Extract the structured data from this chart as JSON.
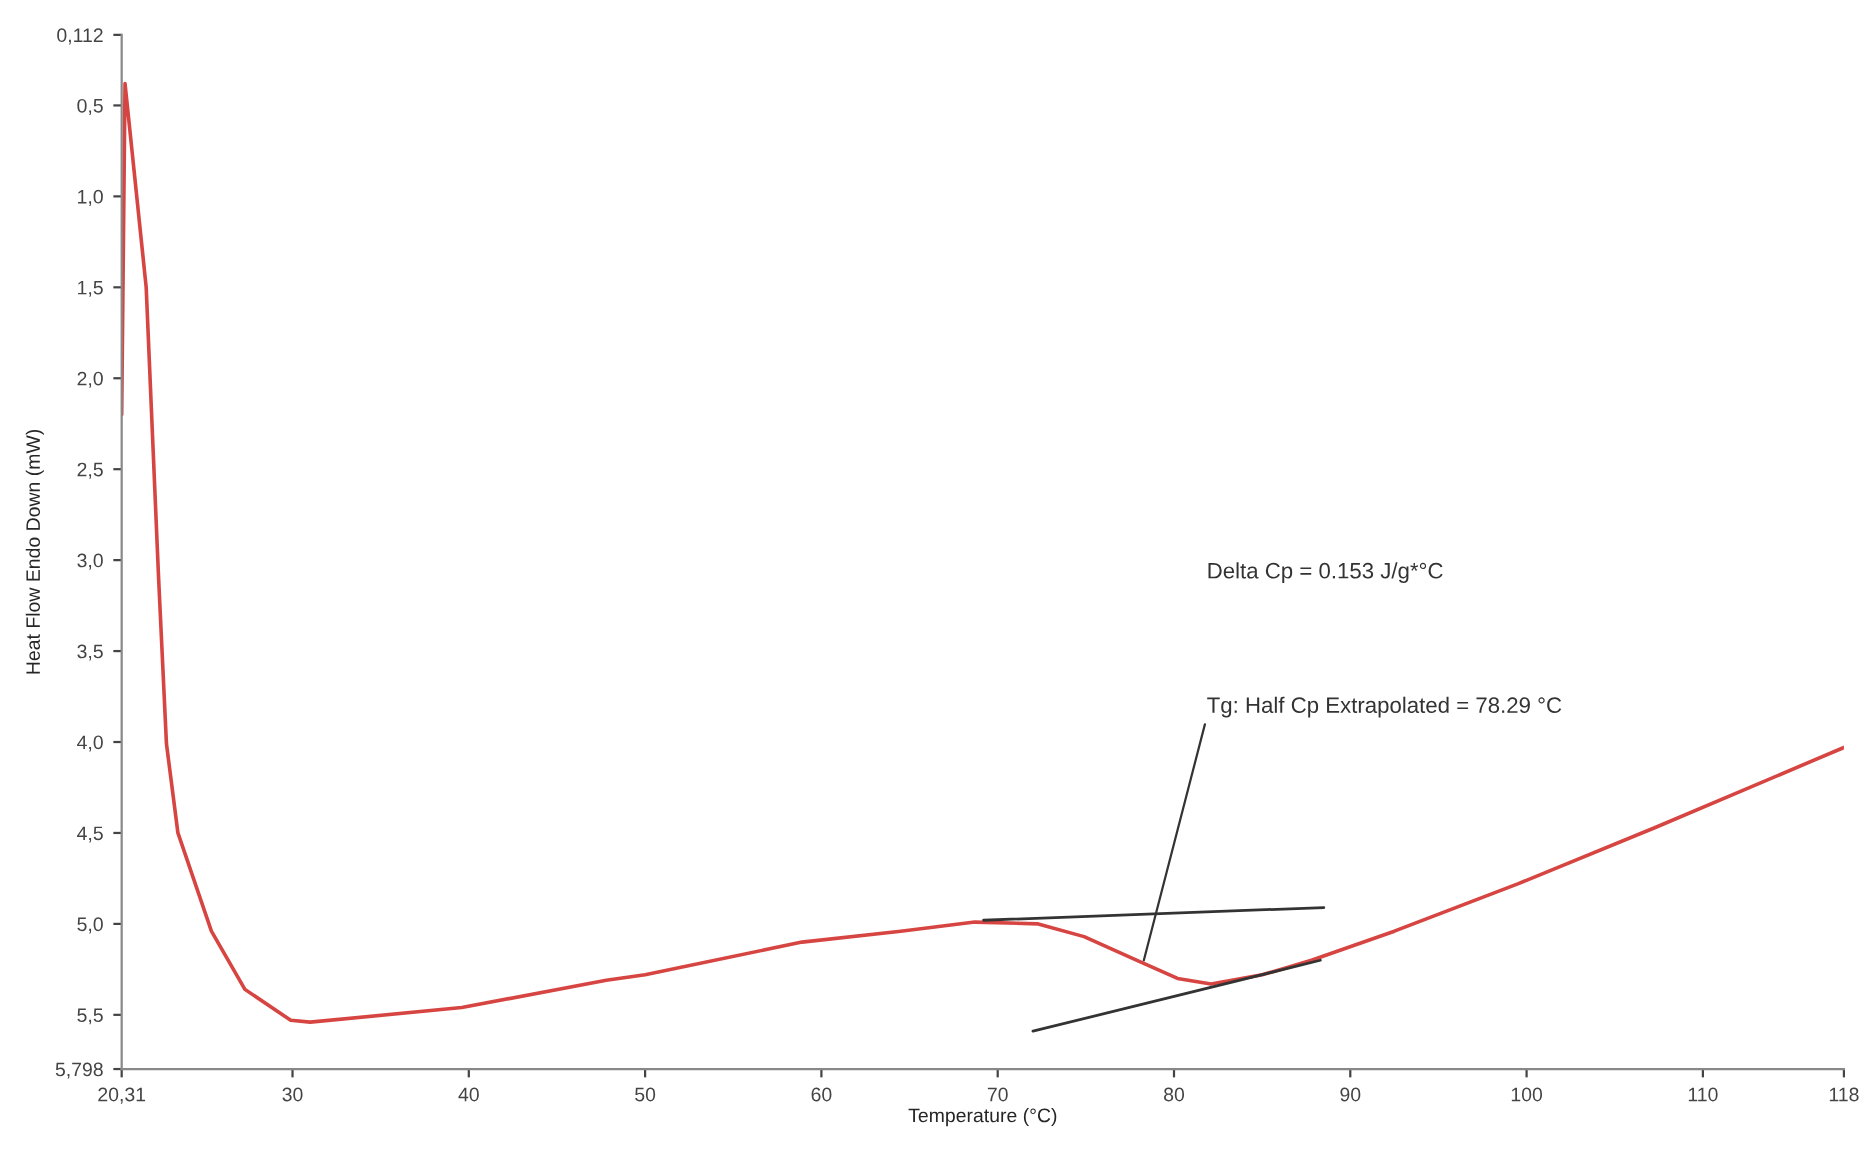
{
  "chart_data": {
    "type": "line",
    "xlabel": "Temperature (°C)",
    "ylabel": "Heat Flow Endo Down (mW)",
    "xlim": [
      20.31,
      118
    ],
    "ylim": [
      5.798,
      0.112
    ],
    "xticks": [
      {
        "value": 20.31,
        "label": "20,31"
      },
      30,
      40,
      50,
      60,
      70,
      80,
      90,
      100,
      110,
      118
    ],
    "yticks": [
      {
        "value": 0.112,
        "label": "0,112"
      },
      {
        "value": 0.5,
        "label": "0,5"
      },
      {
        "value": 1.0,
        "label": "1,0"
      },
      {
        "value": 1.5,
        "label": "1,5"
      },
      {
        "value": 2.0,
        "label": "2,0"
      },
      {
        "value": 2.5,
        "label": "2,5"
      },
      {
        "value": 3.0,
        "label": "3,0"
      },
      {
        "value": 3.5,
        "label": "3,5"
      },
      {
        "value": 4.0,
        "label": "4,0"
      },
      {
        "value": 4.5,
        "label": "4,5"
      },
      {
        "value": 5.0,
        "label": "5,0"
      },
      {
        "value": 5.5,
        "label": "5,5"
      },
      {
        "value": 5.798,
        "label": "5,798"
      }
    ],
    "grid": false,
    "legend": false,
    "marker": "none",
    "line_style": "solid",
    "series": [
      {
        "color": "#d64541",
        "x": [
          20.31,
          20.5,
          21.7,
          22.4,
          22.85,
          23.5,
          25.4,
          27.3,
          29.9,
          31,
          39.6,
          47.8,
          50,
          58.9,
          64.5,
          68.7,
          72.3,
          74.9,
          77.9,
          80.2,
          82.1,
          85,
          87.8,
          92.5,
          99.5,
          107.3,
          118
        ],
        "values": [
          2.2,
          0.38,
          1.5,
          3.09,
          4.01,
          4.5,
          5.04,
          5.36,
          5.53,
          5.54,
          5.46,
          5.31,
          5.28,
          5.1,
          5.04,
          4.99,
          5.0,
          5.07,
          5.2,
          5.3,
          5.33,
          5.28,
          5.2,
          5.04,
          4.78,
          4.47,
          4.03
        ]
      },
      {
        "color": "#333333",
        "x": [
          69.2,
          88.5
        ],
        "values": [
          4.98,
          4.91
        ]
      },
      {
        "color": "#333333",
        "x": [
          72,
          88.3
        ],
        "values": [
          5.59,
          5.2
        ]
      }
    ],
    "annotations": [
      "Delta Cp = 0.153 J/g*°C",
      {
        "text": "Tg: Half Cp Extrapolated = 78.29 °C",
        "x": 78.29,
        "y": 5.2
      }
    ]
  }
}
